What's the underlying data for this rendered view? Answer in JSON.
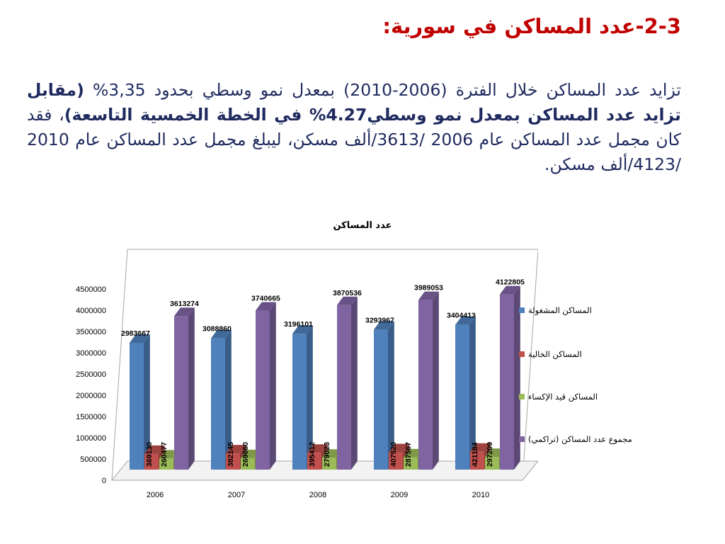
{
  "heading": "2-3-عدد المساكن في سورية:",
  "paragraph": {
    "part1": "تزايد عدد المساكن خلال الفترة (2006-2010) بمعدل نمو وسطي بحدود 3,35% ",
    "bold_part": "(مقابل تزايد عدد المساكن بمعدل نمو وسطي4.27% في الخطة الخمسية التاسعة)",
    "part2": "، فقد كان مجمل عدد المساكن عام 2006 /3613/ألف مسكن، ليبلغ مجمل عدد المساكن عام 2010 /4123/ألف مسكن."
  },
  "chart_data": {
    "type": "bar",
    "title": "عدد المساكن",
    "categories": [
      "2006",
      "2007",
      "2008",
      "2009",
      "2010"
    ],
    "ylim": [
      0,
      4500000
    ],
    "yticks": [
      0,
      500000,
      1000000,
      1500000,
      2000000,
      2500000,
      3000000,
      3500000,
      4000000,
      4500000
    ],
    "ytick_labels": [
      "0",
      "500000",
      "1000000",
      "1500000",
      "2000000",
      "2500000",
      "3000000",
      "3500000",
      "4000000",
      "4500000"
    ],
    "grid": false,
    "legend_position": "right",
    "series": [
      {
        "name": "المساكن المشغولة",
        "color": "#4f81bd",
        "values": [
          2983667,
          3088860,
          3196101,
          3293967,
          3404413
        ]
      },
      {
        "name": "المساكن الخالية",
        "color": "#c0504d",
        "values": [
          369130,
          382145,
          395412,
          407520,
          421184
        ]
      },
      {
        "name": "المساكن قيد الإكساء",
        "color": "#9bbb59",
        "values": [
          260477,
          269660,
          279023,
          287567,
          297209
        ]
      },
      {
        "name": "مجموع عدد المساكن (تراكمي)",
        "color": "#8064a2",
        "values": [
          3613274,
          3740665,
          3870536,
          3989053,
          4122805
        ]
      }
    ]
  }
}
